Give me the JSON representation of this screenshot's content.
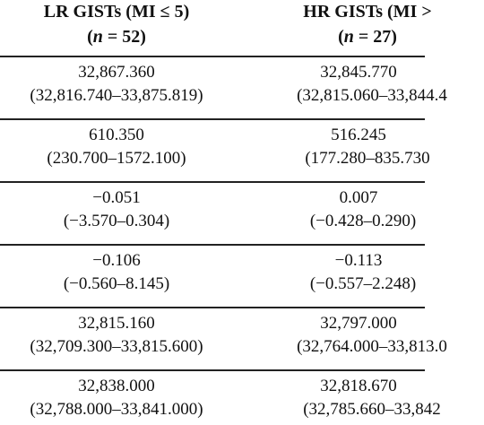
{
  "header": {
    "lr": {
      "line1": "LR GISTs (MI ≤ 5)",
      "n_label": "n",
      "n_value": " = 52)"
    },
    "hr": {
      "line1": "HR GISTs (MI >",
      "n_label": "n",
      "n_value": " = 27)"
    }
  },
  "rows": [
    {
      "lr_value": "32,867.360",
      "lr_range": "(32,816.740–33,875.819)",
      "hr_value": "32,845.770",
      "hr_range": "(32,815.060–33,844.4"
    },
    {
      "lr_value": "610.350",
      "lr_range": "(230.700–1572.100)",
      "hr_value": "516.245",
      "hr_range": "(177.280–835.730"
    },
    {
      "lr_value": "−0.051",
      "lr_range": "(−3.570–0.304)",
      "hr_value": "0.007",
      "hr_range": "(−0.428–0.290)"
    },
    {
      "lr_value": "−0.106",
      "lr_range": "(−0.560–8.145)",
      "hr_value": "−0.113",
      "hr_range": "(−0.557–2.248)"
    },
    {
      "lr_value": "32,815.160",
      "lr_range": "(32,709.300–33,815.600)",
      "hr_value": "32,797.000",
      "hr_range": "(32,764.000–33,813.0"
    },
    {
      "lr_value": "32,838.000",
      "lr_range": "(32,788.000–33,841.000)",
      "hr_value": "32,818.670",
      "hr_range": "(32,785.660–33,842"
    }
  ]
}
